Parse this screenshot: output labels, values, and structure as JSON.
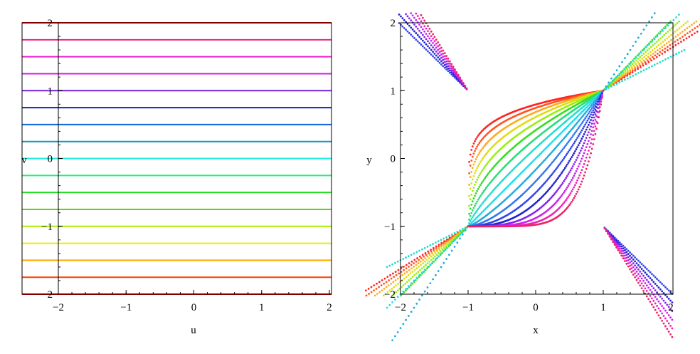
{
  "chart_data": [
    {
      "type": "line",
      "title": "",
      "xlabel": "u",
      "ylabel": "v",
      "xlim": [
        -2.2,
        2.05
      ],
      "ylim": [
        -2.0,
        2.0
      ],
      "grid": false,
      "legend": "none",
      "xticks": [
        -2,
        -1,
        0,
        1,
        2
      ],
      "yticks": [
        -2,
        -1,
        0,
        1,
        2
      ],
      "xtick_labels": [
        "−2",
        "−1",
        "0",
        "1",
        "2"
      ],
      "ytick_labels": [
        "−2",
        "−1",
        "0",
        "1",
        "2"
      ],
      "series": [
        {
          "values": [
            -2.0,
            -2.0
          ],
          "x": [
            -2.5,
            2.05
          ],
          "color": "#ff0000"
        },
        {
          "values": [
            -1.75,
            -1.75
          ],
          "x": [
            -2.5,
            2.05
          ],
          "color": "#ff4000"
        },
        {
          "values": [
            -1.5,
            -1.5
          ],
          "x": [
            -2.5,
            2.05
          ],
          "color": "#ffaa00"
        },
        {
          "values": [
            -1.25,
            -1.25
          ],
          "x": [
            -2.5,
            2.05
          ],
          "color": "#eeee00"
        },
        {
          "values": [
            -1.0,
            -1.0
          ],
          "x": [
            -2.5,
            2.05
          ],
          "color": "#aaee00"
        },
        {
          "values": [
            -0.75,
            -0.75
          ],
          "x": [
            -2.5,
            2.05
          ],
          "color": "#55dd00"
        },
        {
          "values": [
            -0.5,
            -0.5
          ],
          "x": [
            -2.5,
            2.05
          ],
          "color": "#22dd22"
        },
        {
          "values": [
            -0.25,
            -0.25
          ],
          "x": [
            -2.5,
            2.05
          ],
          "color": "#22ee77"
        },
        {
          "values": [
            0.0,
            0.0
          ],
          "x": [
            -2.5,
            2.05
          ],
          "color": "#22eedd"
        },
        {
          "values": [
            0.25,
            0.25
          ],
          "x": [
            -2.5,
            2.05
          ],
          "color": "#1199bb"
        },
        {
          "values": [
            0.5,
            0.5
          ],
          "x": [
            -2.5,
            2.05
          ],
          "color": "#1166dd"
        },
        {
          "values": [
            0.75,
            0.75
          ],
          "x": [
            -2.5,
            2.05
          ],
          "color": "#1122cc"
        },
        {
          "values": [
            1.0,
            1.0
          ],
          "x": [
            -2.5,
            2.05
          ],
          "color": "#7722dd"
        },
        {
          "values": [
            1.25,
            1.25
          ],
          "x": [
            -2.5,
            2.05
          ],
          "color": "#cc22dd"
        },
        {
          "values": [
            1.5,
            1.5
          ],
          "x": [
            -2.5,
            2.05
          ],
          "color": "#ee22cc"
        },
        {
          "values": [
            1.75,
            1.75
          ],
          "x": [
            -2.5,
            2.05
          ],
          "color": "#ee2288"
        },
        {
          "values": [
            2.0,
            2.0
          ],
          "x": [
            -2.5,
            2.05
          ],
          "color": "#ff0000"
        }
      ]
    },
    {
      "type": "scatter",
      "title": "",
      "xlabel": "x",
      "ylabel": "y",
      "xlim": [
        -2.0,
        2.05
      ],
      "ylim": [
        -2.0,
        2.05
      ],
      "grid": false,
      "legend": "none",
      "xticks": [
        -2,
        -1,
        0,
        1,
        2
      ],
      "yticks": [
        -2,
        -1,
        0,
        1,
        2
      ],
      "xtick_labels": [
        "−2",
        "−1",
        "0",
        "1",
        "2"
      ],
      "ytick_labels": [
        "−2",
        "−1",
        "0",
        "1",
        "2"
      ],
      "series": [
        {
          "color": "#ff2222",
          "param": -1.0
        },
        {
          "color": "#ff5522",
          "param": -0.875
        },
        {
          "color": "#ffaa22",
          "param": -0.75
        },
        {
          "color": "#dddd11",
          "param": -0.625
        },
        {
          "color": "#99ee11",
          "param": -0.5
        },
        {
          "color": "#33dd22",
          "param": -0.375
        },
        {
          "color": "#22dd77",
          "param": -0.25
        },
        {
          "color": "#22ddcc",
          "param": -0.125
        },
        {
          "color": "#22ddee",
          "param": 0.0
        },
        {
          "color": "#22aadd",
          "param": 0.125
        },
        {
          "color": "#3377ee",
          "param": 0.25
        },
        {
          "color": "#3344ee",
          "param": 0.375
        },
        {
          "color": "#2222cc",
          "param": 0.5
        },
        {
          "color": "#8822ee",
          "param": 0.625
        },
        {
          "color": "#cc22ee",
          "param": 0.75
        },
        {
          "color": "#ee22bb",
          "param": 0.875
        },
        {
          "color": "#ee2266",
          "param": 1.0
        }
      ]
    }
  ]
}
